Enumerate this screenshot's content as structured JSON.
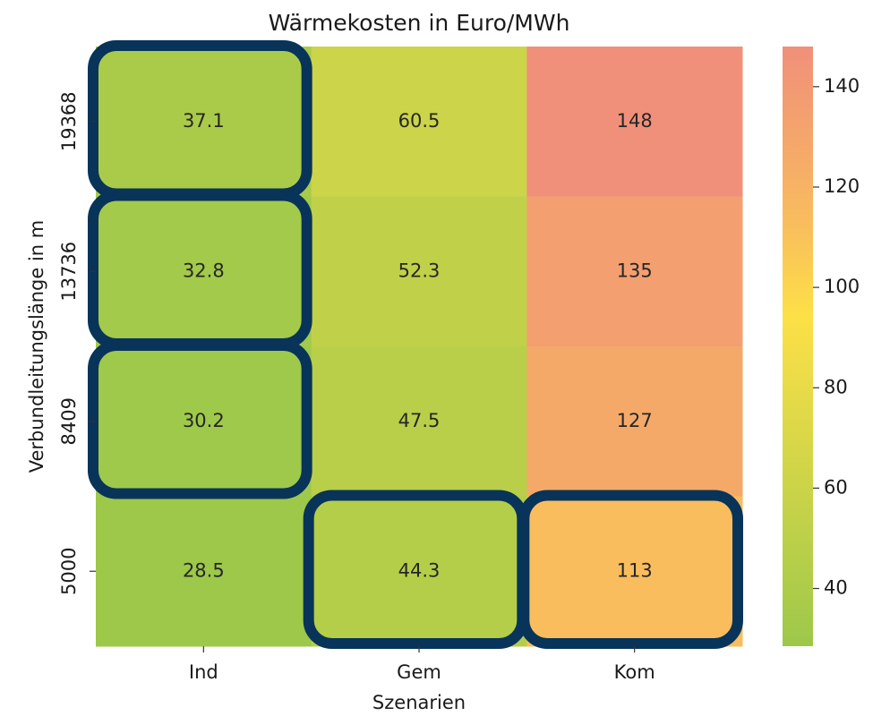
{
  "chart_data": {
    "type": "heatmap",
    "title": "Wärmekosten in Euro/MWh",
    "x_label": "Szenarien",
    "y_label": "Verbundleitungslänge in m",
    "x_categories": [
      "Ind",
      "Gem",
      "Kom"
    ],
    "y_categories": [
      "19368",
      "13736",
      "8409",
      "5000"
    ],
    "values": [
      [
        37.1,
        60.5,
        148
      ],
      [
        32.8,
        52.3,
        135
      ],
      [
        30.2,
        47.5,
        127
      ],
      [
        28.5,
        44.3,
        113
      ]
    ],
    "colorbar_lim": [
      28.5,
      148
    ],
    "colorbar_ticks": [
      40,
      60,
      80,
      100,
      120,
      140
    ],
    "colorscale": [
      [
        0,
        "#9dc84a"
      ],
      [
        0.55,
        "#fde047"
      ],
      [
        0.7,
        "#f9be5c"
      ],
      [
        0.83,
        "#f5a86a"
      ],
      [
        1,
        "#f0907a"
      ]
    ],
    "highlight": [
      [
        true,
        false,
        false
      ],
      [
        true,
        false,
        false
      ],
      [
        true,
        false,
        false
      ],
      [
        false,
        true,
        true
      ]
    ],
    "highlight_color": "#08345a"
  }
}
